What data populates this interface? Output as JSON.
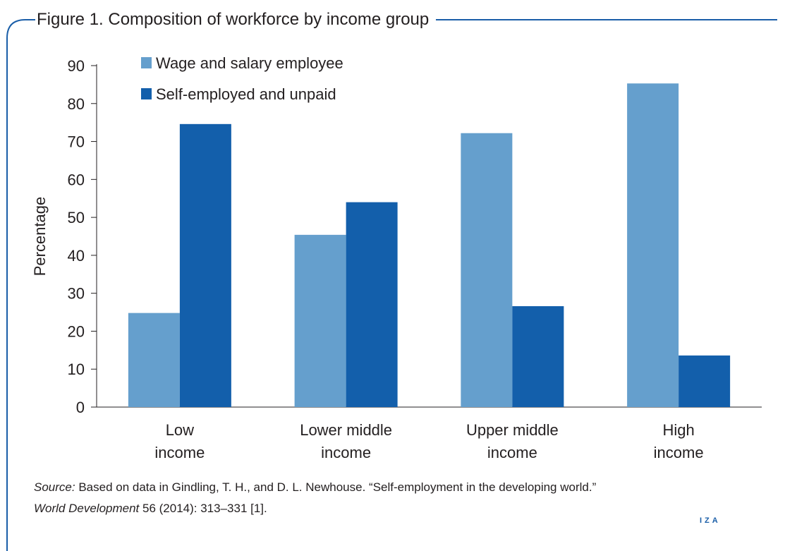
{
  "figure": {
    "title": "Figure 1. Composition of workforce by income group",
    "source_label": "Source:",
    "source_text_1": " Based on data in Gindling, T. H., and D. L. Newhouse. “Self-employment in the developing world.”",
    "source_journal": "World Development",
    "source_text_2": " 56 (2014): 313–331 [1].",
    "brand": "IZA"
  },
  "colors": {
    "wage": "#659fcd",
    "self": "#135fab",
    "frame": "#1a5ea8"
  },
  "chart_data": {
    "type": "bar",
    "categories": [
      [
        "Low",
        "income"
      ],
      [
        "Lower middle",
        "income"
      ],
      [
        "Upper middle",
        "income"
      ],
      [
        "High",
        "income"
      ]
    ],
    "series": [
      {
        "name": "Wage and salary employee",
        "values": [
          24.8,
          45.4,
          72.2,
          85.3
        ]
      },
      {
        "name": "Self-employed and unpaid",
        "values": [
          74.6,
          54.0,
          26.6,
          13.6
        ]
      }
    ],
    "ylabel": "Percentage",
    "xlabel": "",
    "ylim": [
      0,
      90
    ],
    "yticks": [
      0,
      10,
      20,
      30,
      40,
      50,
      60,
      70,
      80,
      90
    ],
    "grid": false,
    "legend": "top-left"
  }
}
